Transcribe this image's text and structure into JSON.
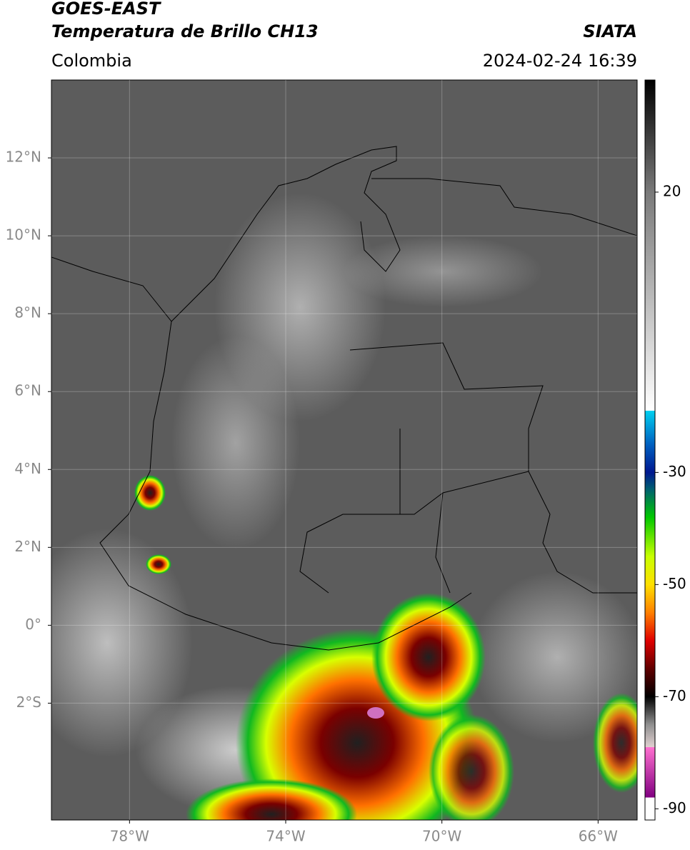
{
  "header": {
    "title": "GOES-EAST",
    "subtitle": "Temperatura de Brillo CH13",
    "source": "SIATA",
    "region": "Colombia",
    "timestamp": "2024-02-24 16:39"
  },
  "map": {
    "xlim": [
      -80,
      -65
    ],
    "ylim": [
      -5,
      14
    ],
    "xticks": [
      {
        "value": -78,
        "label": "78°W"
      },
      {
        "value": -74,
        "label": "74°W"
      },
      {
        "value": -70,
        "label": "70°W"
      },
      {
        "value": -66,
        "label": "66°W"
      }
    ],
    "yticks": [
      {
        "value": 12,
        "label": "12°N"
      },
      {
        "value": 10,
        "label": "10°N"
      },
      {
        "value": 8,
        "label": "8°N"
      },
      {
        "value": 6,
        "label": "6°N"
      },
      {
        "value": 4,
        "label": "4°N"
      },
      {
        "value": 2,
        "label": "2°N"
      },
      {
        "value": 0,
        "label": "0°"
      },
      {
        "value": -2,
        "label": "2°S"
      }
    ],
    "grid": true
  },
  "colorbar": {
    "lim": [
      -92,
      40
    ],
    "ticks": [
      20,
      -30,
      -50,
      -70,
      -90
    ],
    "colors": [
      {
        "value": 40,
        "color": "#000000"
      },
      {
        "value": 20,
        "color": "#7a7a7a"
      },
      {
        "value": -19,
        "color": "#ffffff"
      },
      {
        "value": -19.01,
        "color": "#00d0f0"
      },
      {
        "value": -25,
        "color": "#0060c0"
      },
      {
        "value": -30,
        "color": "#001890"
      },
      {
        "value": -33,
        "color": "#006070"
      },
      {
        "value": -38,
        "color": "#00c800"
      },
      {
        "value": -45,
        "color": "#c8ff00"
      },
      {
        "value": -50,
        "color": "#ffe000"
      },
      {
        "value": -55,
        "color": "#ff8000"
      },
      {
        "value": -60,
        "color": "#e00000"
      },
      {
        "value": -65,
        "color": "#600000"
      },
      {
        "value": -70,
        "color": "#000000"
      },
      {
        "value": -75,
        "color": "#909090"
      },
      {
        "value": -79,
        "color": "#e0d0d0"
      },
      {
        "value": -79.01,
        "color": "#ff70d0"
      },
      {
        "value": -88,
        "color": "#800080"
      },
      {
        "value": -88.01,
        "color": "#ffffff"
      },
      {
        "value": -92,
        "color": "#ffffff"
      }
    ]
  }
}
